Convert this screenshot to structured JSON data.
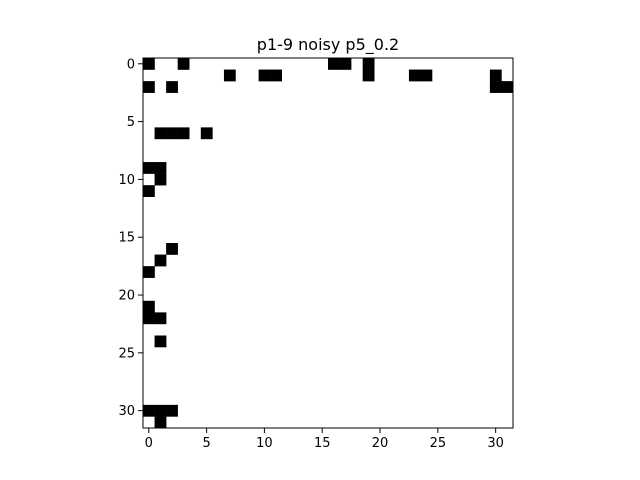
{
  "chart_data": {
    "type": "heatmap",
    "title": "p1-9 noisy p5_0.2",
    "xlabel": "",
    "ylabel": "",
    "colormap": {
      "0": "#ffffff",
      "1": "#000000"
    },
    "xlim": [
      -0.5,
      31.5
    ],
    "ylim": [
      31.5,
      -0.5
    ],
    "x_ticks": [
      0,
      5,
      10,
      15,
      20,
      25,
      30
    ],
    "y_ticks": [
      0,
      5,
      10,
      15,
      20,
      25,
      30
    ],
    "grid": false,
    "rows": [
      "10010000000000001101000000000000",
      "00000001001100000001000110000010",
      "10100000000000000000000000000011",
      "00000000000000000000000000000000",
      "00000000000000000000000000000000",
      "00000000000000000000000000000000",
      "01110100000000000000000000000000",
      "00000000000000000000000000000000",
      "00000000000000000000000000000000",
      "11000000000000000000000000000000",
      "01000000000000000000000000000000",
      "10000000000000000000000000000000",
      "00000000000000000000000000000000",
      "00000000000000000000000000000000",
      "00000000000000000000000000000000",
      "00000000000000000000000000000000",
      "00100000000000000000000000000000",
      "01000000000000000000000000000000",
      "10000000000000000000000000000000",
      "00000000000000000000000000000000",
      "00000000000000000000000000000000",
      "10000000000000000000000000000000",
      "11000000000000000000000000000000",
      "00000000000000000000000000000000",
      "01000000000000000000000000000000",
      "00000000000000000000000000000000",
      "00000000000000000000000000000000",
      "00000000000000000000000000000000",
      "00000000000000000000000000000000",
      "00000000000000000000000000000000",
      "11100000000000000000000000000000",
      "01000000000000000000000000000000"
    ]
  }
}
